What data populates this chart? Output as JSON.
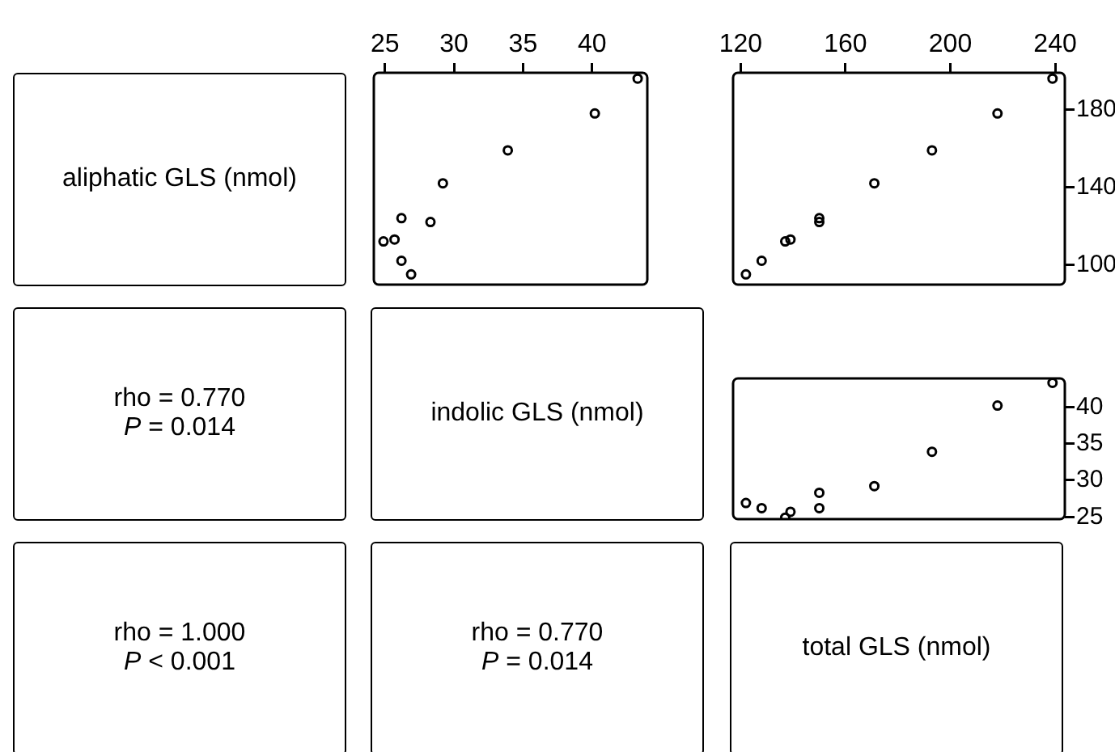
{
  "chart_data": [
    {
      "type": "other",
      "title": "aliphatic GLS (nmol)"
    },
    {
      "type": "scatter",
      "x": [
        43.3,
        40.2,
        33.9,
        29.2,
        26.2,
        28.3,
        25.7,
        24.9,
        26.2,
        26.9
      ],
      "values": [
        196,
        178,
        159,
        142,
        124,
        122,
        113,
        112,
        102,
        95
      ],
      "color": "#000000",
      "marker": "circle",
      "xlim": [
        24.2,
        44
      ],
      "xticks": [
        25,
        30,
        35,
        40
      ],
      "ylim": [
        89.7,
        199
      ],
      "yticks": [
        100,
        140,
        180
      ],
      "tick_labels": "x",
      "grid": false
    },
    {
      "type": "scatter",
      "x": [
        239,
        218,
        193,
        171,
        150,
        150,
        139,
        137,
        128,
        122
      ],
      "values": [
        196,
        178,
        159,
        142,
        124,
        122,
        113,
        112,
        102,
        95
      ],
      "color": "#000000",
      "marker": "circle",
      "xlim": [
        117.1,
        243.7
      ],
      "xticks": [
        120,
        160,
        200,
        240
      ],
      "ylim": [
        89.7,
        199
      ],
      "yticks": [
        100,
        140,
        180
      ],
      "grid": false
    },
    {
      "type": "other",
      "annotations": [
        "rho = 0.770",
        "P = 0.014"
      ]
    },
    {
      "type": "other",
      "title": "indolic GLS (nmol)"
    },
    {
      "type": "scatter",
      "x": [
        239,
        218,
        193,
        171,
        150,
        150,
        139,
        137,
        128,
        122
      ],
      "values": [
        43.3,
        40.2,
        33.9,
        29.2,
        26.2,
        28.3,
        25.7,
        24.9,
        26.2,
        26.9
      ],
      "color": "#000000",
      "marker": "circle",
      "xlim": [
        117.1,
        243.7
      ],
      "xticks": [
        120,
        160,
        200,
        240
      ],
      "ylim": [
        24.7,
        43.9
      ],
      "yticks": [
        25,
        30,
        35,
        40
      ],
      "tick_labels": "y",
      "grid": false
    },
    {
      "type": "other",
      "annotations": [
        "rho = 1.000",
        "P < 0.001"
      ]
    },
    {
      "type": "other",
      "annotations": [
        "rho = 0.770",
        "P = 0.014"
      ]
    },
    {
      "type": "other",
      "title": "total GLS (nmol)"
    }
  ]
}
